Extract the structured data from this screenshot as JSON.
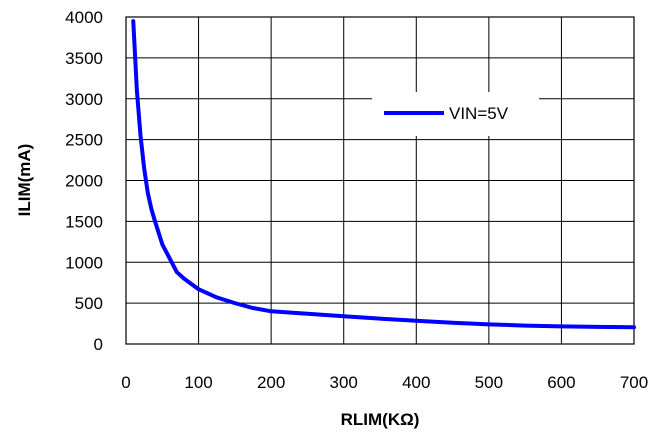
{
  "chart_data": {
    "type": "line",
    "title": "",
    "xlabel": "RLIM(KΩ)",
    "ylabel": "ILIM(mA)",
    "xlim": [
      0,
      700
    ],
    "ylim": [
      0,
      4000
    ],
    "xticks": [
      0,
      100,
      200,
      300,
      400,
      500,
      600,
      700
    ],
    "yticks": [
      0,
      500,
      1000,
      1500,
      2000,
      2500,
      3000,
      3500,
      4000
    ],
    "grid": true,
    "legend_position": "top-right",
    "series": [
      {
        "name": "VIN=5V",
        "color": "#0000ff",
        "x": [
          10,
          15,
          20,
          25,
          30,
          35,
          40,
          50,
          60,
          70,
          80,
          100,
          125,
          150,
          175,
          200,
          250,
          300,
          350,
          400,
          450,
          500,
          550,
          600,
          650,
          700
        ],
        "y": [
          3950,
          3100,
          2550,
          2150,
          1850,
          1650,
          1500,
          1220,
          1050,
          880,
          800,
          670,
          570,
          500,
          440,
          400,
          370,
          340,
          310,
          285,
          260,
          240,
          225,
          215,
          210,
          205
        ]
      }
    ]
  }
}
